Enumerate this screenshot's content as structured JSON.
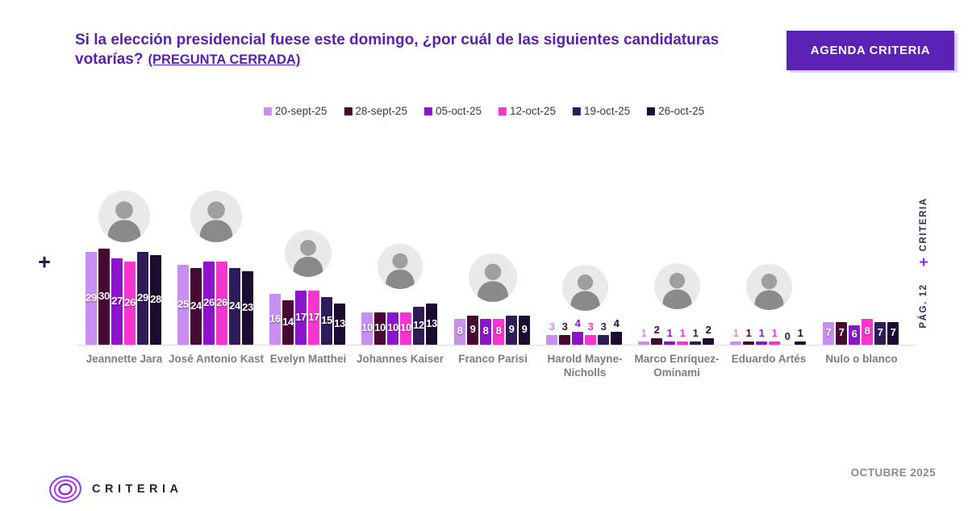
{
  "header": {
    "title": "Si la elección presidencial fuese este domingo, ¿por cuál de las siguientes candidaturas votarías?",
    "title_suffix": "(PREGUNTA CERRADA)",
    "badge_label": "AGENDA CRITERIA"
  },
  "chart_data": {
    "type": "bar",
    "title": "Si la elección presidencial fuese este domingo, ¿por cuál de las siguientes candidaturas votarías? (PREGUNTA CERRADA)",
    "legend_position": "top",
    "grid": false,
    "ylim": [
      0,
      32
    ],
    "value_labels": true,
    "categories": [
      "Jeannette Jara",
      "José Antonio Kast",
      "Evelyn Matthei",
      "Johannes Kaiser",
      "Franco Parisi",
      "Harold Mayne-Nicholls",
      "Marco Enríquez-Ominami",
      "Eduardo Artés",
      "Nulo o blanco"
    ],
    "category_has_photo": [
      true,
      true,
      true,
      true,
      true,
      true,
      true,
      true,
      false
    ],
    "series": [
      {
        "name": "20-sept-25",
        "color": "#c98ff0",
        "values": [
          29,
          25,
          16,
          10,
          8,
          3,
          1,
          1,
          7
        ]
      },
      {
        "name": "28-sept-25",
        "color": "#470933",
        "values": [
          30,
          24,
          14,
          10,
          9,
          3,
          2,
          1,
          7
        ]
      },
      {
        "name": "05-oct-25",
        "color": "#8c15cc",
        "values": [
          27,
          26,
          17,
          10,
          8,
          4,
          1,
          1,
          6
        ]
      },
      {
        "name": "12-oct-25",
        "color": "#f635d0",
        "values": [
          26,
          26,
          17,
          10,
          8,
          3,
          1,
          1,
          8
        ]
      },
      {
        "name": "19-oct-25",
        "color": "#2e1b58",
        "values": [
          29,
          24,
          15,
          12,
          9,
          3,
          1,
          0,
          7
        ]
      },
      {
        "name": "26-oct-25",
        "color": "#1d0b31",
        "values": [
          28,
          23,
          13,
          13,
          9,
          4,
          2,
          1,
          7
        ]
      }
    ]
  },
  "side": {
    "left_plus": "+",
    "right_criteria": "CRITERIA",
    "right_plus": "+",
    "page_number": "PÁG. 12"
  },
  "footer": {
    "brand": "CRITERIA",
    "date": "OCTUBRE 2025"
  },
  "colors": {
    "title_purple": "#5a1fb0",
    "badge_purple": "#5c22b5",
    "axis_line": "#dcdcdc",
    "category_label": "#7d7d7d"
  }
}
